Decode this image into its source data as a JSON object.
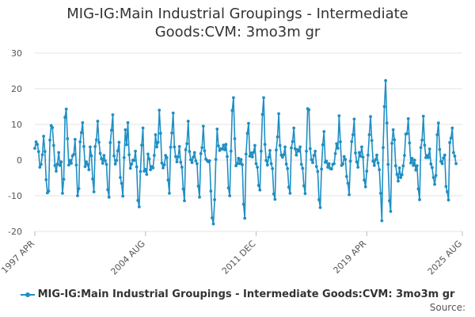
{
  "chart_data": {
    "type": "line",
    "title_lines": [
      "MIG-IG:Main Industrial Groupings - Intermediate",
      "Goods:CVM: 3mo3m gr"
    ],
    "xlabel": "",
    "ylabel": "",
    "ylim": [
      -20,
      30
    ],
    "yticks": [
      -20,
      -10,
      0,
      10,
      20,
      30
    ],
    "x_range_months": [
      0,
      340
    ],
    "xticks": [
      {
        "label": "1997 APR",
        "month_index": 0
      },
      {
        "label": "2004 AUG",
        "month_index": 88
      },
      {
        "label": "2011 DEC",
        "month_index": 176
      },
      {
        "label": "2019 APR",
        "month_index": 264
      },
      {
        "label": "2025 AUG",
        "month_index": 340
      }
    ],
    "grid": true,
    "legend_position": "bottom",
    "series": [
      {
        "name": "MIG-IG:Main Industrial Groupings - Intermediate Goods:CVM: 3mo3m gr",
        "color": "#1f8fc4",
        "values": [
          3.3,
          5.1,
          4.4,
          2.4,
          -2.0,
          -1.2,
          1.5,
          6.7,
          2.4,
          -5.5,
          -9.2,
          -8.7,
          5.6,
          9.7,
          9.1,
          4.1,
          -1.5,
          -3.1,
          -1.1,
          2.1,
          -1.5,
          -0.5,
          -9.3,
          -5.4,
          12.0,
          14.3,
          6.0,
          -1.4,
          -0.1,
          -0.9,
          1.2,
          1.6,
          5.8,
          -1.4,
          -10.0,
          -8.0,
          5.1,
          7.7,
          10.5,
          3.8,
          -1.8,
          -0.5,
          -1.2,
          -2.7,
          3.7,
          1.2,
          -5.3,
          -8.9,
          3.8,
          5.7,
          10.9,
          5.0,
          1.9,
          0.4,
          -0.9,
          1.3,
          -0.2,
          -1.2,
          -8.3,
          -10.4,
          4.9,
          8.4,
          12.7,
          1.2,
          -1.1,
          -0.1,
          2.6,
          5.0,
          -4.9,
          -6.5,
          -10.1,
          0.7,
          8.5,
          4.3,
          10.5,
          1.5,
          -2.3,
          -1.1,
          0.0,
          -0.1,
          2.5,
          -1.9,
          -11.3,
          -13.1,
          -3.2,
          4.2,
          9.0,
          -3.1,
          -2.6,
          -4.0,
          1.7,
          0.3,
          -2.7,
          -1.8,
          -2.2,
          1.3,
          7.1,
          3.7,
          5.0,
          14.0,
          7.5,
          -0.8,
          -2.2,
          -1.3,
          1.3,
          0.7,
          -5.6,
          -9.3,
          3.6,
          7.6,
          13.2,
          3.7,
          1.0,
          -0.5,
          0.9,
          3.8,
          -0.6,
          -2.0,
          -8.1,
          -11.4,
          2.9,
          4.6,
          10.9,
          2.4,
          0.1,
          -0.7,
          0.8,
          2.1,
          -0.2,
          -1.0,
          -7.3,
          -10.4,
          1.8,
          3.5,
          9.5,
          2.6,
          0.3,
          -0.1,
          -0.5,
          -0.2,
          -8.7,
          -16.2,
          -17.9,
          -11.1,
          0.2,
          8.7,
          4.0,
          2.7,
          3.2,
          3.1,
          4.2,
          2.9,
          4.4,
          1.0,
          -7.8,
          -10.0,
          2.5,
          13.9,
          17.5,
          6.0,
          -1.6,
          -1.0,
          0.5,
          -1.0,
          0.2,
          -1.3,
          -12.4,
          -16.3,
          1.7,
          7.5,
          10.3,
          1.1,
          2.0,
          0.9,
          2.2,
          4.1,
          -1.0,
          -2.0,
          -7.1,
          -8.4,
          2.5,
          12.8,
          17.5,
          4.4,
          -0.1,
          -1.4,
          0.8,
          2.7,
          -1.0,
          -2.4,
          -9.5,
          -11.0,
          2.8,
          6.5,
          13.0,
          4.1,
          1.4,
          0.8,
          1.5,
          3.7,
          -1.1,
          -2.4,
          -7.6,
          -9.3,
          3.4,
          5.2,
          9.0,
          3.2,
          1.4,
          2.9,
          2.5,
          3.7,
          -1.2,
          -2.3,
          -7.2,
          -9.4,
          2.5,
          14.4,
          14.1,
          3.2,
          0.1,
          -0.7,
          1.3,
          2.5,
          -1.8,
          -3.2,
          -11.1,
          -13.3,
          -2.5,
          4.3,
          8.0,
          -0.6,
          -0.3,
          -2.0,
          -1.0,
          -2.4,
          -2.5,
          -1.2,
          -1.0,
          1.8,
          4.6,
          3.3,
          12.4,
          5.1,
          -1.5,
          -1.1,
          1.0,
          0.2,
          -4.6,
          -6.5,
          -9.7,
          -0.3,
          5.2,
          7.1,
          11.5,
          2.0,
          -0.5,
          -2.0,
          2.1,
          1.1,
          3.7,
          0.8,
          -5.6,
          -7.5,
          -3.1,
          1.4,
          7.1,
          12.2,
          5.5,
          -0.3,
          -1.5,
          0.1,
          1.4,
          -0.8,
          -2.7,
          -9.3,
          -17.0,
          3.5,
          15.0,
          22.3,
          10.4,
          -1.2,
          -11.4,
          -14.4,
          4.7,
          8.5,
          5.7,
          -1.6,
          -4.0,
          -5.9,
          -2.2,
          -4.9,
          -4.1,
          -1.6,
          1.3,
          7.3,
          7.4,
          11.6,
          4.8,
          -0.8,
          0.5,
          -1.5,
          0.0,
          -2.8,
          -1.6,
          -8.1,
          -11.1,
          3.5,
          5.6,
          12.3,
          4.2,
          0.7,
          1.3,
          0.7,
          3.1,
          -1.1,
          -2.1,
          -4.9,
          -6.8,
          -4.3,
          7.1,
          10.4,
          3.0,
          -0.4,
          -1.0,
          0.6,
          1.4,
          -7.4,
          -8.9,
          -11.2,
          4.9,
          6.2,
          9.0,
          2.1,
          1.1,
          -1.0
        ]
      }
    ]
  },
  "source_label": "Source:"
}
